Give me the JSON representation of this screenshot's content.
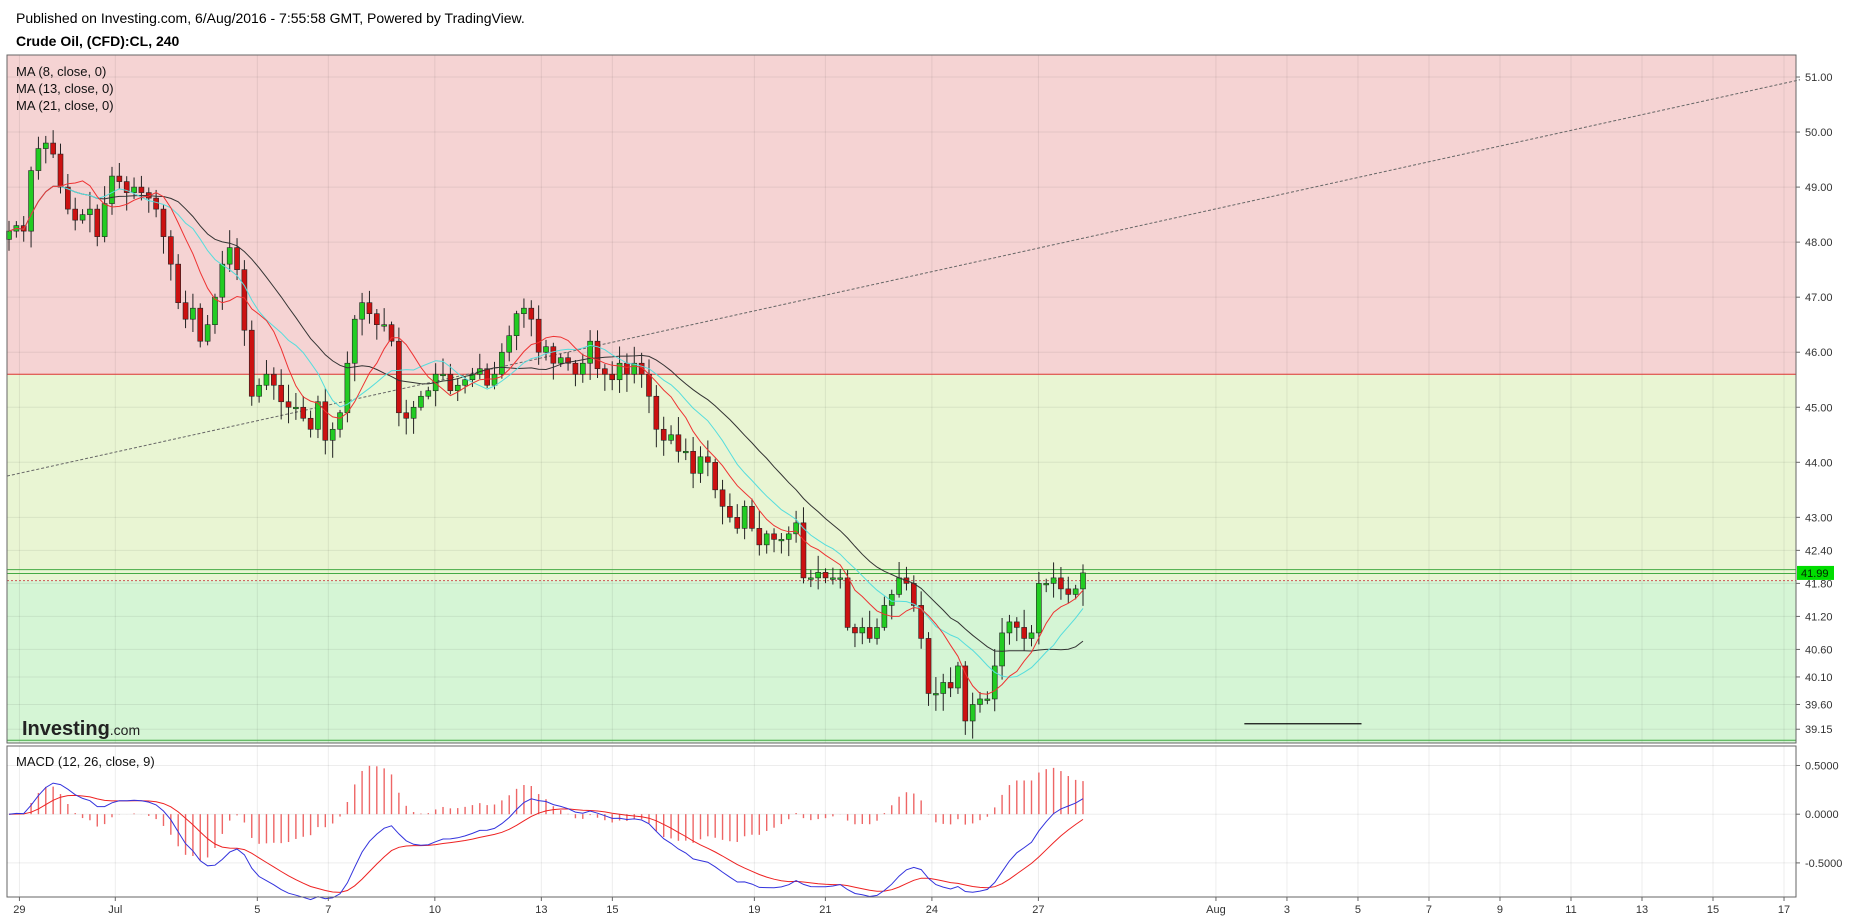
{
  "header": {
    "published": "Published on Investing.com, 6/Aug/2016 - 7:55:58 GMT, Powered by TradingView.",
    "symbol": "Crude Oil, (CFD):CL, 240"
  },
  "logo": {
    "text": "Investing",
    "suffix": ".com"
  },
  "colors": {
    "zone_red": "#f5d3d3",
    "zone_yellow": "#e9f5d3",
    "zone_green": "#d5f5d5",
    "candle_up": "#22cc22",
    "candle_down": "#cc1111",
    "ma8": "#ee3333",
    "ma13": "#55dddd",
    "ma21": "#333333",
    "macd_line": "#3333dd",
    "signal_line": "#ee2222",
    "hist": "#ee6666",
    "price_tag": "#00dd00"
  },
  "chart_data": [
    {
      "type": "candlestick",
      "title": "Crude Oil, (CFD):CL, 240",
      "legend": [
        "MA (8, close, 0)",
        "MA (13, close, 0)",
        "MA (21, close, 0)"
      ],
      "ylim": [
        38.9,
        51.4
      ],
      "y_ticks": [
        "51.00",
        "50.00",
        "49.00",
        "48.00",
        "47.00",
        "46.00",
        "45.00",
        "44.00",
        "43.00",
        "42.40",
        "41.80",
        "41.20",
        "40.60",
        "40.10",
        "39.60",
        "39.15"
      ],
      "x_ticks": [
        {
          "label": "29",
          "day": -1.7
        },
        {
          "label": "Jul",
          "day": 1
        },
        {
          "label": "5",
          "day": 5
        },
        {
          "label": "7",
          "day": 7
        },
        {
          "label": "10",
          "day": 10
        },
        {
          "label": "13",
          "day": 13
        },
        {
          "label": "15",
          "day": 15
        },
        {
          "label": "19",
          "day": 19
        },
        {
          "label": "21",
          "day": 21
        },
        {
          "label": "24",
          "day": 24
        },
        {
          "label": "27",
          "day": 27
        },
        {
          "label": "Aug",
          "day": 32
        },
        {
          "label": "3",
          "day": 34
        },
        {
          "label": "5",
          "day": 36
        },
        {
          "label": "7",
          "day": 38
        },
        {
          "label": "9",
          "day": 40
        },
        {
          "label": "11",
          "day": 42
        },
        {
          "label": "13",
          "day": 44
        },
        {
          "label": "15",
          "day": 46
        },
        {
          "label": "17",
          "day": 48
        }
      ],
      "last_price": "41.99",
      "zones": [
        {
          "name": "resistance",
          "from": 45.6,
          "to": 51.4
        },
        {
          "name": "middle",
          "from": 41.85,
          "to": 45.6
        },
        {
          "name": "support",
          "from": 38.9,
          "to": 41.85
        }
      ],
      "horizontal_lines": [
        45.6,
        42.05,
        41.98,
        41.85,
        38.95
      ],
      "trendline": {
        "start": [
          -2.05,
          43.75
        ],
        "end": [
          48.45,
          50.95
        ]
      },
      "support_segment": {
        "start": [
          32.8,
          39.25
        ],
        "end": [
          36.1,
          39.25
        ]
      },
      "closes": [
        48.2,
        48.3,
        48.2,
        49.3,
        49.7,
        49.8,
        49.6,
        49.0,
        48.6,
        48.4,
        48.5,
        48.6,
        48.1,
        48.7,
        49.2,
        49.1,
        48.9,
        49.0,
        48.9,
        48.8,
        48.6,
        48.1,
        47.6,
        46.9,
        46.6,
        46.8,
        46.2,
        46.5,
        47.0,
        47.6,
        47.9,
        47.5,
        46.4,
        45.2,
        45.4,
        45.6,
        45.4,
        45.1,
        45.0,
        45.0,
        44.8,
        44.6,
        45.1,
        44.4,
        44.6,
        44.9,
        45.8,
        46.6,
        46.9,
        46.7,
        46.5,
        46.5,
        46.2,
        44.9,
        44.8,
        45.0,
        45.2,
        45.3,
        45.6,
        45.6,
        45.3,
        45.4,
        45.5,
        45.6,
        45.7,
        45.4,
        45.6,
        46.0,
        46.3,
        46.7,
        46.8,
        46.6,
        46.0,
        46.1,
        45.8,
        45.9,
        45.8,
        45.6,
        45.8,
        46.2,
        45.7,
        45.6,
        45.5,
        45.8,
        45.6,
        45.8,
        45.6,
        45.2,
        44.6,
        44.4,
        44.5,
        44.2,
        44.2,
        43.8,
        44.1,
        44.0,
        43.5,
        43.2,
        43.0,
        42.8,
        43.2,
        42.8,
        42.5,
        42.7,
        42.6,
        42.6,
        42.7,
        42.9,
        41.9,
        41.9,
        42.0,
        41.9,
        41.9,
        41.9,
        41.0,
        40.9,
        41.0,
        40.8,
        41.0,
        41.4,
        41.6,
        41.9,
        41.8,
        41.4,
        40.8,
        39.8,
        39.8,
        40.0,
        39.9,
        40.3,
        39.3,
        39.6,
        39.7,
        39.7,
        40.3,
        40.9,
        41.1,
        41.0,
        40.8,
        40.9,
        41.8,
        41.8,
        41.9,
        41.7,
        41.6,
        41.7,
        41.99
      ]
    },
    {
      "type": "line",
      "title": "MACD (12, 26, close, 9)",
      "ylim": [
        -0.85,
        0.7
      ],
      "y_ticks": [
        "0.5000",
        "0.0000",
        "-0.5000"
      ]
    }
  ]
}
